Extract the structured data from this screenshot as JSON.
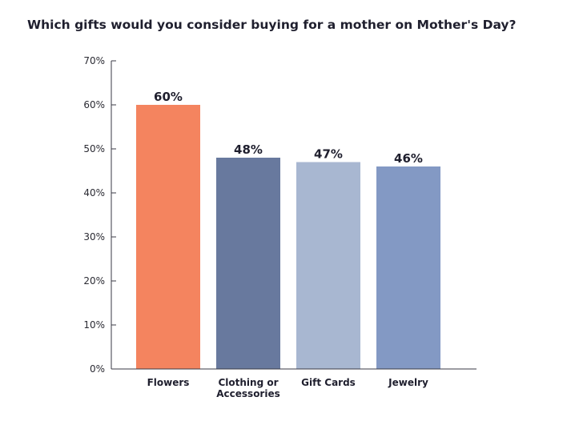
{
  "chart_data": {
    "type": "bar",
    "title": "Which gifts would you consider buying for a mother on Mother's Day?",
    "categories": [
      [
        "Flowers"
      ],
      [
        "Clothing or",
        "Accessories"
      ],
      [
        "Gift Cards"
      ],
      [
        "Jewelry"
      ]
    ],
    "values": [
      60,
      48,
      47,
      46
    ],
    "data_labels": [
      "60%",
      "48%",
      "47%",
      "46%"
    ],
    "colors": [
      "#f4845f",
      "#68799e",
      "#a8b7d1",
      "#8399c4"
    ],
    "yticks": [
      "0%",
      "10%",
      "20%",
      "30%",
      "40%",
      "50%",
      "60%",
      "70%"
    ],
    "ylim": [
      0,
      70
    ],
    "xlabel": "",
    "ylabel": "",
    "grid": false,
    "legend": "none"
  }
}
